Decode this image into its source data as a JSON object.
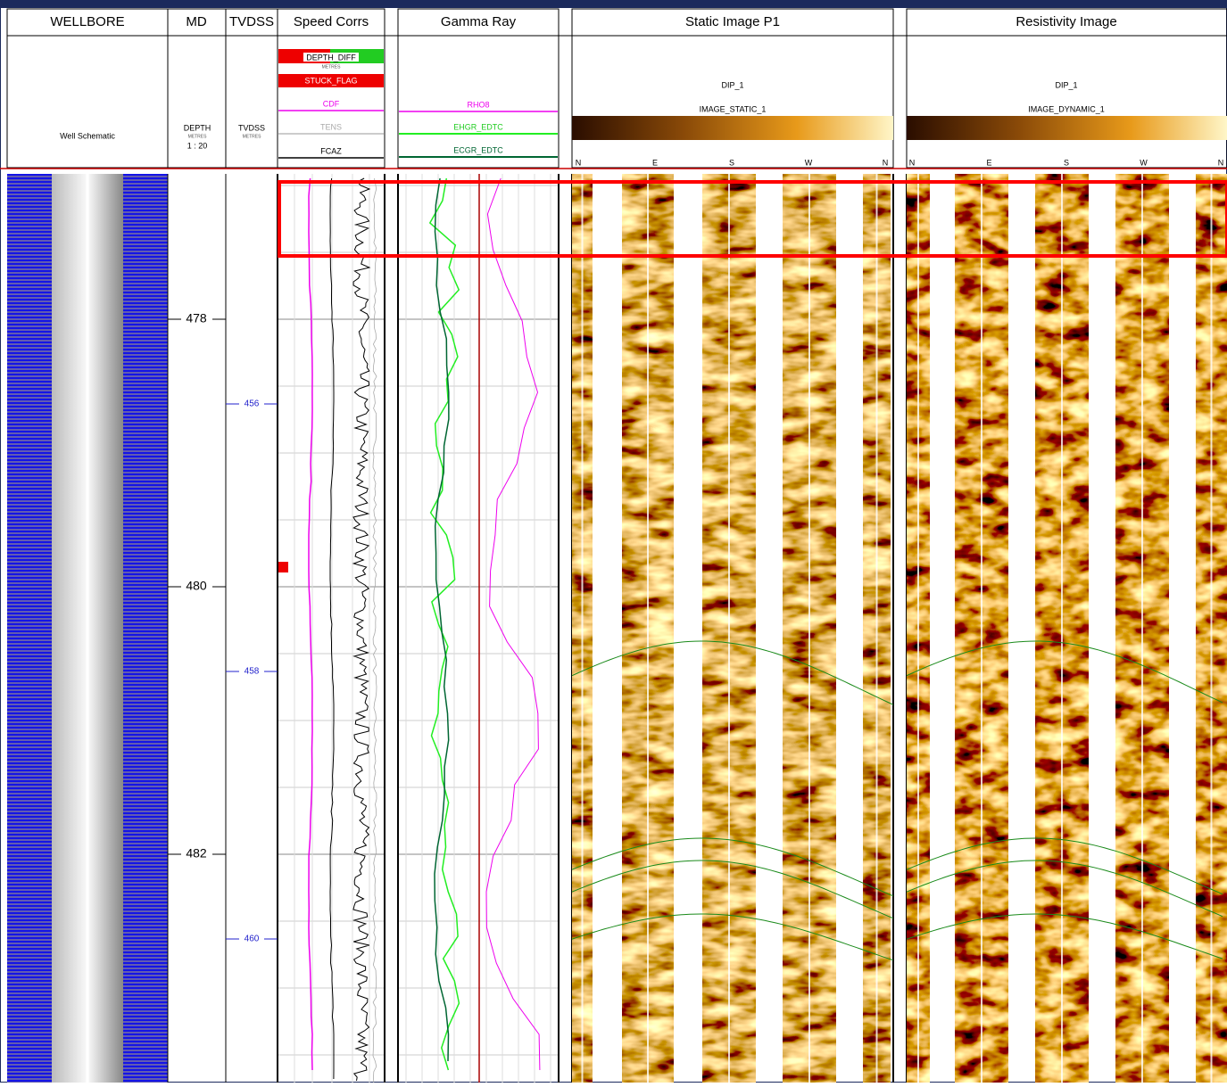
{
  "tracks": {
    "wellbore": {
      "title": "WELLBORE",
      "label": "Well Schematic"
    },
    "md": {
      "title": "MD",
      "label": "DEPTH",
      "unit": "METRES",
      "scale": "1 : 20",
      "depths": [
        478,
        480,
        482
      ]
    },
    "tvdss": {
      "title": "TVDSS",
      "label": "TVDSS",
      "unit": "METRES",
      "depths": [
        456,
        458,
        460
      ]
    },
    "speed_corrs": {
      "title": "Speed Corrs",
      "curves": [
        "DEPTH_DIFF",
        "STUCK_FLAG",
        "CDF",
        "TENS",
        "FCAZ"
      ],
      "unit": "METRES"
    },
    "gamma_ray": {
      "title": "Gamma Ray",
      "curves": [
        "RHO8",
        "EHGR_EDTC",
        "ECGR_EDTC"
      ]
    },
    "static_image": {
      "title": "Static Image P1",
      "dip": "DIP_1",
      "image": "IMAGE_STATIC_1",
      "azimuths": [
        "N",
        "E",
        "S",
        "W",
        "N"
      ]
    },
    "resistivity_image": {
      "title": "Resistivity Image",
      "dip": "DIP_1",
      "image": "IMAGE_DYNAMIC_1",
      "azimuths": [
        "N",
        "E",
        "S",
        "W",
        "N"
      ]
    }
  }
}
